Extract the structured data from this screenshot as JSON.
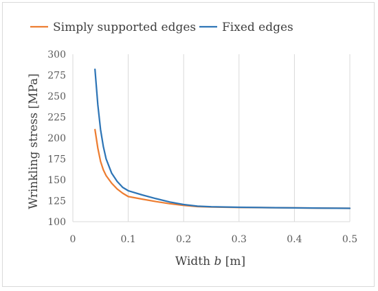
{
  "chart_data": {
    "type": "line",
    "title": "",
    "xlabel": "Width b [m]",
    "xlabel_plain": "Width ",
    "xlabel_var": "b",
    "xlabel_unit": " [m]",
    "ylabel": "Wrinkling stress [MPa]",
    "xlim": [
      0,
      0.5
    ],
    "ylim": [
      100,
      300
    ],
    "xticks": [
      "0",
      "0.1",
      "0.2",
      "0.3",
      "0.4",
      "0.5"
    ],
    "yticks": [
      "100",
      "125",
      "150",
      "175",
      "200",
      "225",
      "250",
      "275",
      "300"
    ],
    "grid": "vertical",
    "legend_position": "top",
    "series": [
      {
        "name": "Simply supported edges",
        "color": "#ED7D31",
        "points": [
          [
            0.04,
            210
          ],
          [
            0.045,
            188
          ],
          [
            0.05,
            172
          ],
          [
            0.055,
            162
          ],
          [
            0.06,
            155
          ],
          [
            0.07,
            146
          ],
          [
            0.08,
            139
          ],
          [
            0.09,
            134
          ],
          [
            0.1,
            130
          ],
          [
            0.125,
            127
          ],
          [
            0.15,
            124
          ],
          [
            0.175,
            121.5
          ],
          [
            0.2,
            119.5
          ],
          [
            0.225,
            118
          ],
          [
            0.25,
            117.5
          ],
          [
            0.3,
            117
          ],
          [
            0.35,
            116.8
          ],
          [
            0.4,
            116.5
          ],
          [
            0.45,
            116.2
          ],
          [
            0.5,
            116
          ]
        ]
      },
      {
        "name": "Fixed edges",
        "color": "#2E75B6",
        "points": [
          [
            0.04,
            282
          ],
          [
            0.045,
            240
          ],
          [
            0.05,
            210
          ],
          [
            0.055,
            190
          ],
          [
            0.06,
            175
          ],
          [
            0.07,
            158
          ],
          [
            0.08,
            148
          ],
          [
            0.09,
            141
          ],
          [
            0.1,
            137
          ],
          [
            0.125,
            132
          ],
          [
            0.15,
            127.5
          ],
          [
            0.175,
            123.5
          ],
          [
            0.2,
            120.5
          ],
          [
            0.225,
            118.5
          ],
          [
            0.25,
            117.8
          ],
          [
            0.3,
            117.2
          ],
          [
            0.35,
            116.8
          ],
          [
            0.4,
            116.5
          ],
          [
            0.45,
            116.2
          ],
          [
            0.5,
            116
          ]
        ]
      }
    ]
  }
}
